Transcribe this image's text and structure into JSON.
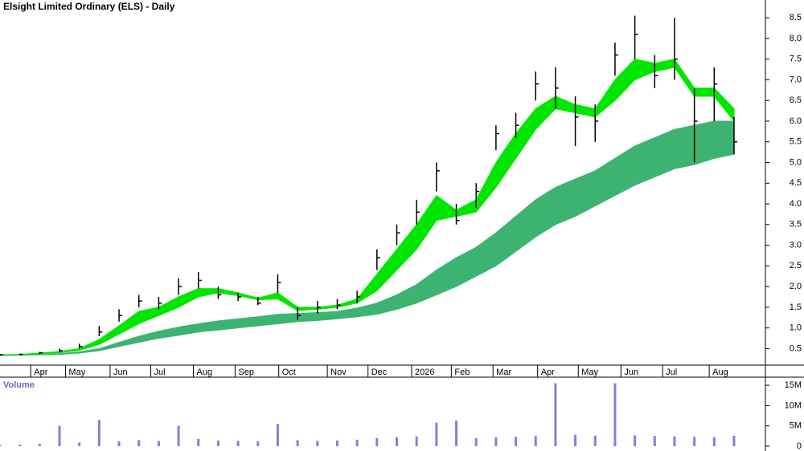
{
  "chart_data": {
    "type": "candlestick",
    "title": "Elsight Limited Ordinary (ELS) - Daily",
    "x": [
      0,
      2,
      4,
      6,
      8,
      10,
      12,
      14,
      16,
      18,
      20,
      22,
      24,
      26,
      28,
      30,
      32,
      34,
      36,
      38,
      40,
      42,
      44,
      46,
      48,
      50,
      52,
      54,
      56,
      58,
      60,
      62,
      64,
      66,
      68,
      70,
      72,
      74
    ],
    "close": [
      0.35,
      0.36,
      0.4,
      0.45,
      0.55,
      0.9,
      1.3,
      1.65,
      1.6,
      2.0,
      2.15,
      1.8,
      1.75,
      1.6,
      2.1,
      1.3,
      1.5,
      1.55,
      1.75,
      2.7,
      3.3,
      3.8,
      4.8,
      3.6,
      4.3,
      5.7,
      5.9,
      6.9,
      6.8,
      6.1,
      6.0,
      7.6,
      8.1,
      7.1,
      7.5,
      6.0,
      6.9,
      5.5
    ],
    "high": [
      0.37,
      0.38,
      0.42,
      0.5,
      0.62,
      1.05,
      1.45,
      1.8,
      1.75,
      2.2,
      2.35,
      2.0,
      1.85,
      1.75,
      2.3,
      1.5,
      1.65,
      1.7,
      1.9,
      2.9,
      3.5,
      4.1,
      5.0,
      4.0,
      4.5,
      5.9,
      6.2,
      7.2,
      7.3,
      6.6,
      6.4,
      7.9,
      8.55,
      7.6,
      8.5,
      6.8,
      7.3,
      6.1
    ],
    "low": [
      0.33,
      0.34,
      0.37,
      0.41,
      0.5,
      0.8,
      1.15,
      1.5,
      1.45,
      1.8,
      1.95,
      1.7,
      1.65,
      1.55,
      1.85,
      1.2,
      1.35,
      1.45,
      1.6,
      2.4,
      3.0,
      3.5,
      4.3,
      3.5,
      3.9,
      5.3,
      5.6,
      6.5,
      6.3,
      5.4,
      5.5,
      7.1,
      7.5,
      6.8,
      7.0,
      5.0,
      6.0,
      5.2
    ],
    "short_upper": [
      0.35,
      0.36,
      0.39,
      0.43,
      0.5,
      0.72,
      1.05,
      1.4,
      1.5,
      1.75,
      1.95,
      1.95,
      1.85,
      1.72,
      1.85,
      1.5,
      1.5,
      1.55,
      1.7,
      2.3,
      2.9,
      3.5,
      4.2,
      3.85,
      4.1,
      5.0,
      5.7,
      6.3,
      6.6,
      6.4,
      6.3,
      7.0,
      7.5,
      7.4,
      7.5,
      6.8,
      6.8,
      6.3
    ],
    "short_lower": [
      0.34,
      0.35,
      0.37,
      0.4,
      0.46,
      0.6,
      0.85,
      1.1,
      1.3,
      1.5,
      1.75,
      1.85,
      1.78,
      1.68,
      1.7,
      1.42,
      1.45,
      1.5,
      1.6,
      1.9,
      2.4,
      2.9,
      3.6,
      3.7,
      3.8,
      4.4,
      5.1,
      5.8,
      6.3,
      6.2,
      6.1,
      6.5,
      7.0,
      7.2,
      7.3,
      6.6,
      6.6,
      6.0
    ],
    "long_upper": [
      0.34,
      0.35,
      0.36,
      0.38,
      0.42,
      0.5,
      0.65,
      0.8,
      0.92,
      1.02,
      1.1,
      1.17,
      1.22,
      1.27,
      1.33,
      1.35,
      1.37,
      1.4,
      1.48,
      1.6,
      1.8,
      2.05,
      2.4,
      2.7,
      2.95,
      3.3,
      3.7,
      4.1,
      4.4,
      4.6,
      4.8,
      5.1,
      5.4,
      5.6,
      5.8,
      5.9,
      6.0,
      6.0
    ],
    "long_lower": [
      0.33,
      0.34,
      0.35,
      0.36,
      0.39,
      0.45,
      0.55,
      0.65,
      0.75,
      0.82,
      0.9,
      0.95,
      1.0,
      1.05,
      1.1,
      1.15,
      1.18,
      1.22,
      1.27,
      1.33,
      1.45,
      1.6,
      1.8,
      2.0,
      2.25,
      2.5,
      2.85,
      3.2,
      3.5,
      3.7,
      3.95,
      4.2,
      4.45,
      4.65,
      4.85,
      4.95,
      5.1,
      5.2
    ],
    "color": "#000000",
    "short_color": "#00e600",
    "long_color": "#3cb371",
    "xlim": [
      0,
      77
    ],
    "ylim": [
      0.1,
      8.93
    ],
    "xticks": [
      {
        "value": 3.1,
        "label": "Apr"
      },
      {
        "value": 6.6,
        "label": "May"
      },
      {
        "value": 11.1,
        "label": "Jun"
      },
      {
        "value": 15.2,
        "label": "Jul"
      },
      {
        "value": 19.5,
        "label": "Aug"
      },
      {
        "value": 23.7,
        "label": "Sep"
      },
      {
        "value": 28.1,
        "label": "Oct"
      },
      {
        "value": 33,
        "label": "Nov"
      },
      {
        "value": 37.1,
        "label": "Dec"
      },
      {
        "value": 41.5,
        "label": "2026"
      },
      {
        "value": 45.5,
        "label": "Feb"
      },
      {
        "value": 49.7,
        "label": "Mar"
      },
      {
        "value": 54.2,
        "label": "Apr"
      },
      {
        "value": 58.3,
        "label": "May"
      },
      {
        "value": 62.6,
        "label": "Jun"
      },
      {
        "value": 66.8,
        "label": "Jul"
      },
      {
        "value": 71.5,
        "label": "Aug"
      }
    ],
    "yticks": [
      0.5,
      {
        "value": 1,
        "label": "1.0"
      },
      1.5,
      {
        "value": 2,
        "label": "2.0"
      },
      2.5,
      {
        "value": 3,
        "label": "3.0"
      },
      3.5,
      {
        "value": 4,
        "label": "4.0"
      },
      4.5,
      {
        "value": 5,
        "label": "5.0"
      },
      5.5,
      {
        "value": 6,
        "label": "6.0"
      },
      6.5,
      {
        "value": 7,
        "label": "7.0"
      },
      7.5,
      {
        "value": 8,
        "label": "8.0"
      },
      8.5
    ],
    "volume": {
      "label": "Volume",
      "color": "#8080e0",
      "values": [
        300000,
        400000,
        600000,
        5000000,
        900000,
        6500000,
        1200000,
        1500000,
        1300000,
        5000000,
        1800000,
        1400000,
        1300000,
        1200000,
        5500000,
        1500000,
        1300000,
        1400000,
        1600000,
        2000000,
        2200000,
        2400000,
        5800000,
        6300000,
        2000000,
        2200000,
        2300000,
        2500000,
        15500000,
        2800000,
        2600000,
        15500000,
        2700000,
        2500000,
        2400000,
        2300000,
        2200000,
        2600000
      ],
      "ylim": [
        0,
        16600000
      ],
      "yticks": [
        {
          "value": 0,
          "label": "0"
        },
        {
          "value": 5000000,
          "label": "5M"
        },
        {
          "value": 10000000,
          "label": "10M"
        },
        {
          "value": 15000000,
          "label": "15M"
        }
      ]
    }
  }
}
